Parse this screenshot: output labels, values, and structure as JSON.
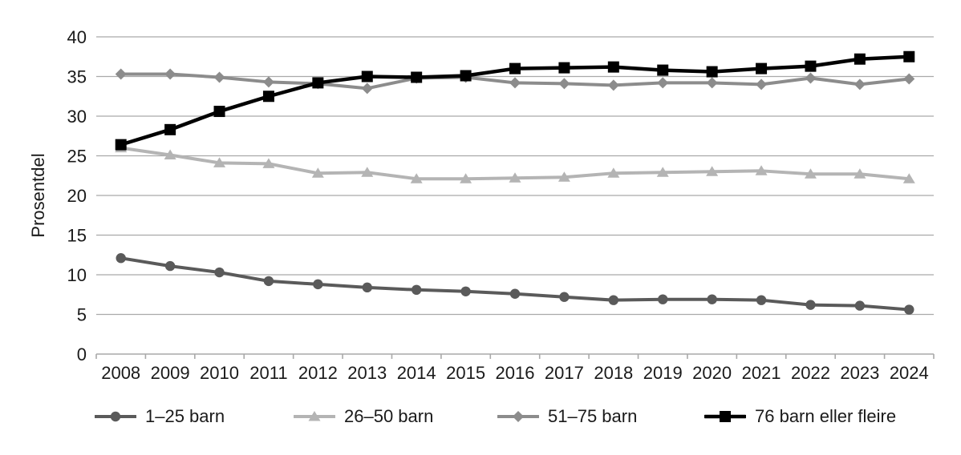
{
  "chart_data": {
    "type": "line",
    "title": "",
    "ylabel": "Prosentdel",
    "xlabel": "",
    "ylim": [
      0,
      40
    ],
    "ytick_step": 5,
    "grid": true,
    "legend_position": "bottom",
    "categories": [
      2008,
      2009,
      2010,
      2011,
      2012,
      2013,
      2014,
      2015,
      2016,
      2017,
      2018,
      2019,
      2020,
      2021,
      2022,
      2023,
      2024
    ],
    "series": [
      {
        "name": "1–25 barn",
        "marker": "circle",
        "color": "#5a5a5a",
        "line_width": 4,
        "values": [
          12.1,
          11.1,
          10.3,
          9.2,
          8.8,
          8.4,
          8.1,
          7.9,
          7.6,
          7.2,
          6.8,
          6.9,
          6.9,
          6.8,
          6.2,
          6.1,
          5.6
        ]
      },
      {
        "name": "26–50 barn",
        "marker": "triangle",
        "color": "#b4b4b4",
        "line_width": 4,
        "values": [
          26.0,
          25.1,
          24.1,
          24.0,
          22.8,
          22.9,
          22.1,
          22.1,
          22.2,
          22.3,
          22.8,
          22.9,
          23.0,
          23.1,
          22.7,
          22.7,
          22.1
        ]
      },
      {
        "name": "51–75 barn",
        "marker": "diamond",
        "color": "#8c8c8c",
        "line_width": 4,
        "values": [
          35.3,
          35.3,
          34.9,
          34.3,
          34.1,
          33.5,
          34.8,
          34.9,
          34.2,
          34.1,
          33.9,
          34.2,
          34.2,
          34.0,
          34.8,
          34.0,
          34.7
        ]
      },
      {
        "name": "76 barn eller fleire",
        "marker": "square",
        "color": "#000000",
        "line_width": 4.5,
        "values": [
          26.4,
          28.3,
          30.6,
          32.5,
          34.2,
          35.0,
          34.9,
          35.1,
          36.0,
          36.1,
          36.2,
          35.8,
          35.6,
          36.0,
          36.3,
          37.2,
          37.5
        ]
      }
    ],
    "colors": {
      "gridline": "#a9a9a9",
      "axis": "#a9a9a9",
      "text": "#1a1a1a",
      "background": "#ffffff"
    }
  }
}
